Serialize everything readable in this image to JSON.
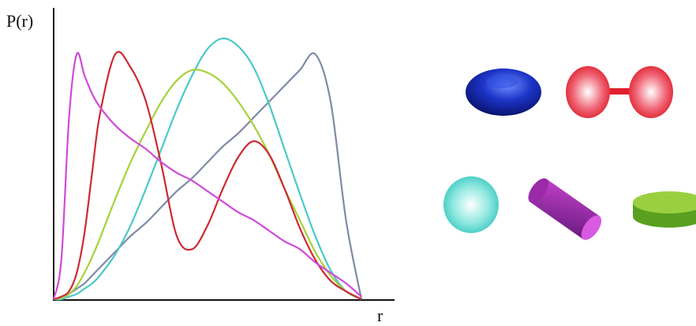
{
  "chart_data": {
    "type": "line",
    "y_label": "P(r)",
    "x_label": "r",
    "x": [
      0,
      2.5,
      5,
      7.5,
      10,
      12.5,
      15,
      20,
      25,
      30,
      35,
      40,
      45,
      50,
      55,
      60,
      65,
      70,
      75,
      80,
      85,
      90,
      95,
      100
    ],
    "xlim": [
      0,
      110
    ],
    "ylim": [
      0,
      110
    ],
    "series": [
      {
        "color": "#7f8aa8",
        "values": [
          0,
          0.5,
          2,
          4,
          6,
          9,
          12,
          18,
          24,
          29,
          35,
          41,
          46,
          52,
          58,
          63,
          69,
          75,
          81,
          87,
          93,
          75,
          30,
          0
        ]
      },
      {
        "color": "#4cc8c8",
        "values": [
          0,
          0,
          1,
          2,
          4,
          6,
          9,
          17,
          28,
          42,
          57,
          72,
          85,
          95,
          99,
          96,
          88,
          74,
          57,
          40,
          24,
          11,
          3,
          0
        ]
      },
      {
        "color": "#a6d23a",
        "values": [
          0,
          0.5,
          2,
          5,
          10,
          16,
          23,
          38,
          52,
          64,
          75,
          83,
          87,
          86,
          82,
          75,
          66,
          55,
          42,
          30,
          18,
          9,
          3,
          0
        ]
      },
      {
        "color": "#cc2a34",
        "values": [
          0,
          1,
          3,
          10,
          25,
          48,
          70,
          93,
          88,
          75,
          51,
          24,
          19,
          28,
          42,
          54,
          60,
          55,
          42,
          27,
          15,
          7,
          3,
          0
        ]
      },
      {
        "color": "#d04ad8",
        "values": [
          0,
          15,
          69,
          93,
          85,
          78,
          73,
          66,
          61,
          57,
          52,
          48,
          45,
          41,
          37,
          33,
          30,
          26,
          22,
          19,
          14,
          10,
          6,
          1
        ]
      }
    ]
  }
}
